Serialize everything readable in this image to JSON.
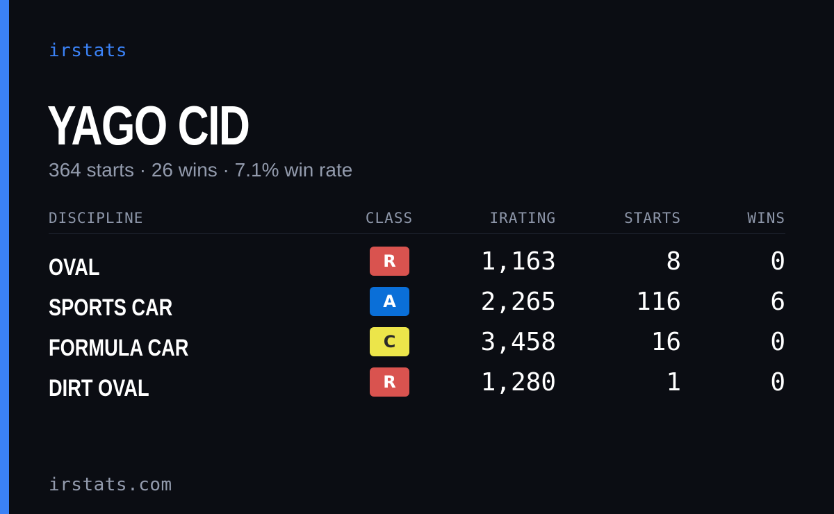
{
  "brand": "irstats",
  "driver_name": "YAGO CID",
  "summary": "364 starts · 26 wins · 7.1% win rate",
  "table": {
    "headers": {
      "discipline": "DISCIPLINE",
      "class": "CLASS",
      "irating": "IRATING",
      "starts": "STARTS",
      "wins": "WINS"
    },
    "rows": [
      {
        "discipline": "OVAL",
        "class": "R",
        "class_bg": "#d9534f",
        "class_fg": "#ffffff",
        "irating": "1,163",
        "starts": "8",
        "wins": "0"
      },
      {
        "discipline": "SPORTS CAR",
        "class": "A",
        "class_bg": "#0a6fd8",
        "class_fg": "#ffffff",
        "irating": "2,265",
        "starts": "116",
        "wins": "6"
      },
      {
        "discipline": "FORMULA CAR",
        "class": "C",
        "class_bg": "#ece54a",
        "class_fg": "#2a2a2a",
        "irating": "3,458",
        "starts": "16",
        "wins": "0"
      },
      {
        "discipline": "DIRT OVAL",
        "class": "R",
        "class_bg": "#d9534f",
        "class_fg": "#ffffff",
        "irating": "1,280",
        "starts": "1",
        "wins": "0"
      }
    ]
  },
  "footer": "irstats.com",
  "colors": {
    "accent": "#3b82f6",
    "background": "#0b0d13",
    "muted_text": "#939bad"
  }
}
